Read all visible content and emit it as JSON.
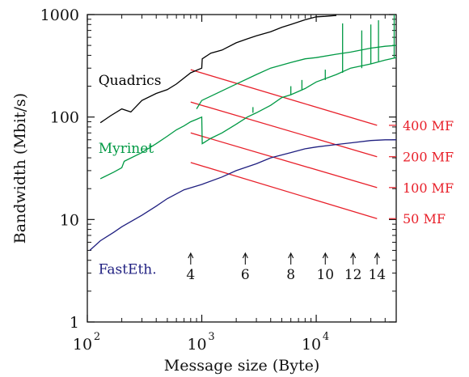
{
  "chart_data": {
    "type": "line",
    "title": "",
    "xlabel": "Message size (Byte)",
    "ylabel": "Bandwidth (Mbit/s)",
    "x_scale": "log",
    "y_scale": "log",
    "xlim": [
      100,
      50000
    ],
    "ylim": [
      1,
      1000
    ],
    "x_ticks": [
      {
        "value": 100,
        "base": "10",
        "exp": "2"
      },
      {
        "value": 1000,
        "base": "10",
        "exp": "3"
      },
      {
        "value": 10000,
        "base": "10",
        "exp": "4"
      }
    ],
    "y_ticks": [
      {
        "value": 1,
        "label": "1"
      },
      {
        "value": 10,
        "label": "10"
      },
      {
        "value": 100,
        "label": "100"
      },
      {
        "value": 1000,
        "label": "1000"
      }
    ],
    "grid": false,
    "series": [
      {
        "name": "Quadrics",
        "color": "#000000",
        "label_at": [
          125,
          230
        ],
        "points": [
          [
            130,
            88
          ],
          [
            160,
            103
          ],
          [
            200,
            120
          ],
          [
            240,
            112
          ],
          [
            300,
            145
          ],
          [
            400,
            170
          ],
          [
            500,
            185
          ],
          [
            600,
            210
          ],
          [
            800,
            270
          ],
          [
            1000,
            300
          ],
          [
            1010,
            370
          ],
          [
            1200,
            420
          ],
          [
            1500,
            450
          ],
          [
            2000,
            530
          ],
          [
            2500,
            580
          ],
          [
            3000,
            620
          ],
          [
            4000,
            680
          ],
          [
            5000,
            750
          ],
          [
            6000,
            800
          ],
          [
            8000,
            890
          ],
          [
            10000,
            950
          ],
          [
            12000,
            960
          ],
          [
            15000,
            980
          ]
        ]
      },
      {
        "name": "Myrinet",
        "color": "#009944",
        "label_at": [
          125,
          50
        ],
        "points": [
          [
            130,
            25
          ],
          [
            170,
            29
          ],
          [
            200,
            32
          ],
          [
            210,
            37
          ],
          [
            300,
            45
          ],
          [
            400,
            55
          ],
          [
            500,
            65
          ],
          [
            600,
            75
          ],
          [
            700,
            82
          ],
          [
            800,
            90
          ],
          [
            900,
            95
          ],
          [
            1000,
            100
          ],
          [
            1010,
            55
          ],
          [
            1200,
            62
          ],
          [
            1500,
            70
          ],
          [
            2000,
            85
          ],
          [
            2500,
            100
          ],
          [
            3000,
            110
          ],
          [
            4000,
            130
          ],
          [
            5000,
            155
          ],
          [
            6000,
            165
          ],
          [
            8000,
            190
          ],
          [
            10000,
            220
          ],
          [
            15000,
            260
          ],
          [
            20000,
            300
          ],
          [
            30000,
            330
          ],
          [
            40000,
            360
          ],
          [
            50000,
            380
          ]
        ]
      },
      {
        "name": "FastEth.",
        "color": "#1f1f80",
        "label_at": [
          125,
          3.3
        ],
        "points": [
          [
            105,
            5
          ],
          [
            130,
            6.2
          ],
          [
            170,
            7.5
          ],
          [
            200,
            8.5
          ],
          [
            300,
            11
          ],
          [
            400,
            13.5
          ],
          [
            500,
            16
          ],
          [
            700,
            19.5
          ],
          [
            1000,
            22
          ],
          [
            1500,
            26
          ],
          [
            2000,
            30
          ],
          [
            3000,
            35
          ],
          [
            4000,
            40
          ],
          [
            6000,
            45
          ],
          [
            8000,
            49
          ],
          [
            10000,
            51
          ],
          [
            15000,
            54
          ],
          [
            20000,
            56
          ],
          [
            30000,
            59
          ],
          [
            40000,
            60
          ],
          [
            50000,
            60
          ]
        ]
      }
    ],
    "extra_curves": [
      {
        "color": "#009944",
        "points": [
          [
            900,
            120
          ],
          [
            1000,
            145
          ],
          [
            1500,
            180
          ],
          [
            2000,
            210
          ],
          [
            3000,
            260
          ],
          [
            4000,
            300
          ],
          [
            6000,
            340
          ],
          [
            8000,
            370
          ],
          [
            10000,
            380
          ],
          [
            15000,
            410
          ],
          [
            20000,
            430
          ],
          [
            30000,
            470
          ],
          [
            40000,
            490
          ],
          [
            50000,
            500
          ]
        ]
      }
    ],
    "spikes": [
      {
        "x": 2800,
        "y1": 110,
        "y2": 125
      },
      {
        "x": 6000,
        "y1": 165,
        "y2": 200
      },
      {
        "x": 7500,
        "y1": 185,
        "y2": 230
      },
      {
        "x": 12000,
        "y1": 230,
        "y2": 290
      },
      {
        "x": 17000,
        "y1": 270,
        "y2": 820
      },
      {
        "x": 25000,
        "y1": 300,
        "y2": 700
      },
      {
        "x": 30000,
        "y1": 330,
        "y2": 800
      },
      {
        "x": 35000,
        "y1": 350,
        "y2": 880
      },
      {
        "x": 48000,
        "y1": 380,
        "y2": 1000
      }
    ],
    "reference_lines": [
      {
        "label": "400 MF",
        "color": "#e8202a",
        "x": [
          800,
          34000
        ],
        "y": [
          290,
          83
        ]
      },
      {
        "label": "200 MF",
        "color": "#e8202a",
        "x": [
          800,
          34000
        ],
        "y": [
          140,
          41
        ]
      },
      {
        "label": "100 MF",
        "color": "#e8202a",
        "x": [
          800,
          34000
        ],
        "y": [
          70,
          20.5
        ]
      },
      {
        "label": "50 MF",
        "color": "#e8202a",
        "x": [
          800,
          34000
        ],
        "y": [
          36,
          10.2
        ]
      }
    ],
    "markers": [
      {
        "label": "4",
        "x": 800
      },
      {
        "label": "6",
        "x": 2400
      },
      {
        "label": "8",
        "x": 6000
      },
      {
        "label": "10",
        "x": 12000
      },
      {
        "label": "12",
        "x": 21000
      },
      {
        "label": "14",
        "x": 34000
      }
    ]
  }
}
